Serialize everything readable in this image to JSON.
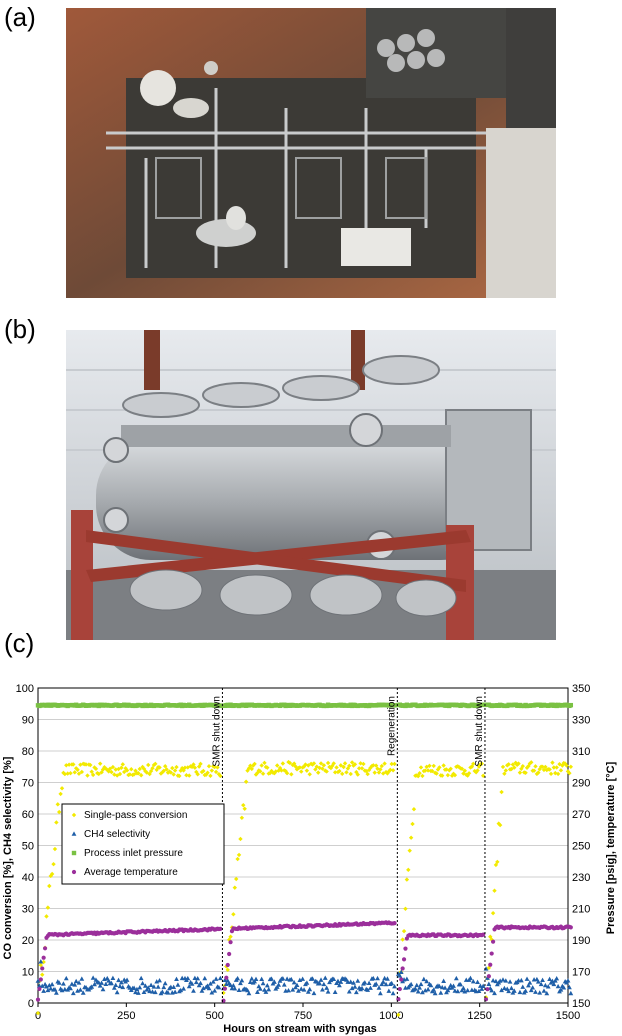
{
  "panels": {
    "a": "(a)",
    "b": "(b)",
    "c": "(c)"
  },
  "chart_data": {
    "type": "scatter",
    "xlabel": "Hours on stream with syngas",
    "ylabel_left": "CO conversion [%], CH4 selectivity [%]",
    "ylabel_right": "Pressure [psig], temperature [°C]",
    "xlim": [
      0,
      1500
    ],
    "ylim_left": [
      0,
      100
    ],
    "ylim_right": [
      150,
      350
    ],
    "x_ticks": [
      "0",
      "250",
      "500",
      "750",
      "1000",
      "1250",
      "1500"
    ],
    "y_left_ticks": [
      "0",
      "10",
      "20",
      "30",
      "40",
      "50",
      "60",
      "70",
      "80",
      "90",
      "100"
    ],
    "y_right_ticks": [
      "150",
      "170",
      "190",
      "210",
      "230",
      "250",
      "270",
      "290",
      "310",
      "330",
      "350"
    ],
    "events": [
      {
        "x": 522,
        "label": "SMR shut down"
      },
      {
        "x": 1017,
        "label": "Regeneration"
      },
      {
        "x": 1265,
        "label": "SMR shut down"
      }
    ],
    "legend_position": "center-left",
    "series": [
      {
        "name": "Single-pass conversion",
        "axis": "left",
        "color": "#f2ea00",
        "marker": "diamond",
        "segments": [
          {
            "start": 0,
            "end": 518,
            "plateau": 74,
            "rise_hours": 70
          },
          {
            "start": 525,
            "end": 1012,
            "plateau": 74.5,
            "rise_hours": 70
          },
          {
            "start": 1020,
            "end": 1260,
            "plateau": 74,
            "rise_hours": 50
          },
          {
            "start": 1268,
            "end": 1510,
            "plateau": 74.5,
            "rise_hours": 50
          }
        ]
      },
      {
        "name": "CH4 selectivity",
        "axis": "left",
        "color": "#1f5fa8",
        "marker": "triangle",
        "segments": [
          {
            "start": 0,
            "end": 518,
            "plateau": 5.5
          },
          {
            "start": 525,
            "end": 1012,
            "plateau": 5.5
          },
          {
            "start": 1020,
            "end": 1260,
            "plateau": 5.5
          },
          {
            "start": 1268,
            "end": 1510,
            "plateau": 5.5
          }
        ]
      },
      {
        "name": "Process inlet pressure",
        "axis": "right",
        "color": "#7ac143",
        "marker": "square",
        "segments": [
          {
            "start": 0,
            "end": 518,
            "plateau": 339
          },
          {
            "start": 525,
            "end": 1012,
            "plateau": 339
          },
          {
            "start": 1020,
            "end": 1510,
            "plateau": 339
          }
        ]
      },
      {
        "name": "Average temperature",
        "axis": "right",
        "color": "#9b2f9b",
        "marker": "circle",
        "segments": [
          {
            "start": 0,
            "end": 518,
            "plateau_start": 193,
            "plateau_end": 197
          },
          {
            "start": 525,
            "end": 1012,
            "plateau_start": 197,
            "plateau_end": 201
          },
          {
            "start": 1020,
            "end": 1260,
            "plateau_start": 193,
            "plateau_end": 193
          },
          {
            "start": 1268,
            "end": 1510,
            "plateau_start": 198,
            "plateau_end": 198
          }
        ]
      }
    ]
  }
}
